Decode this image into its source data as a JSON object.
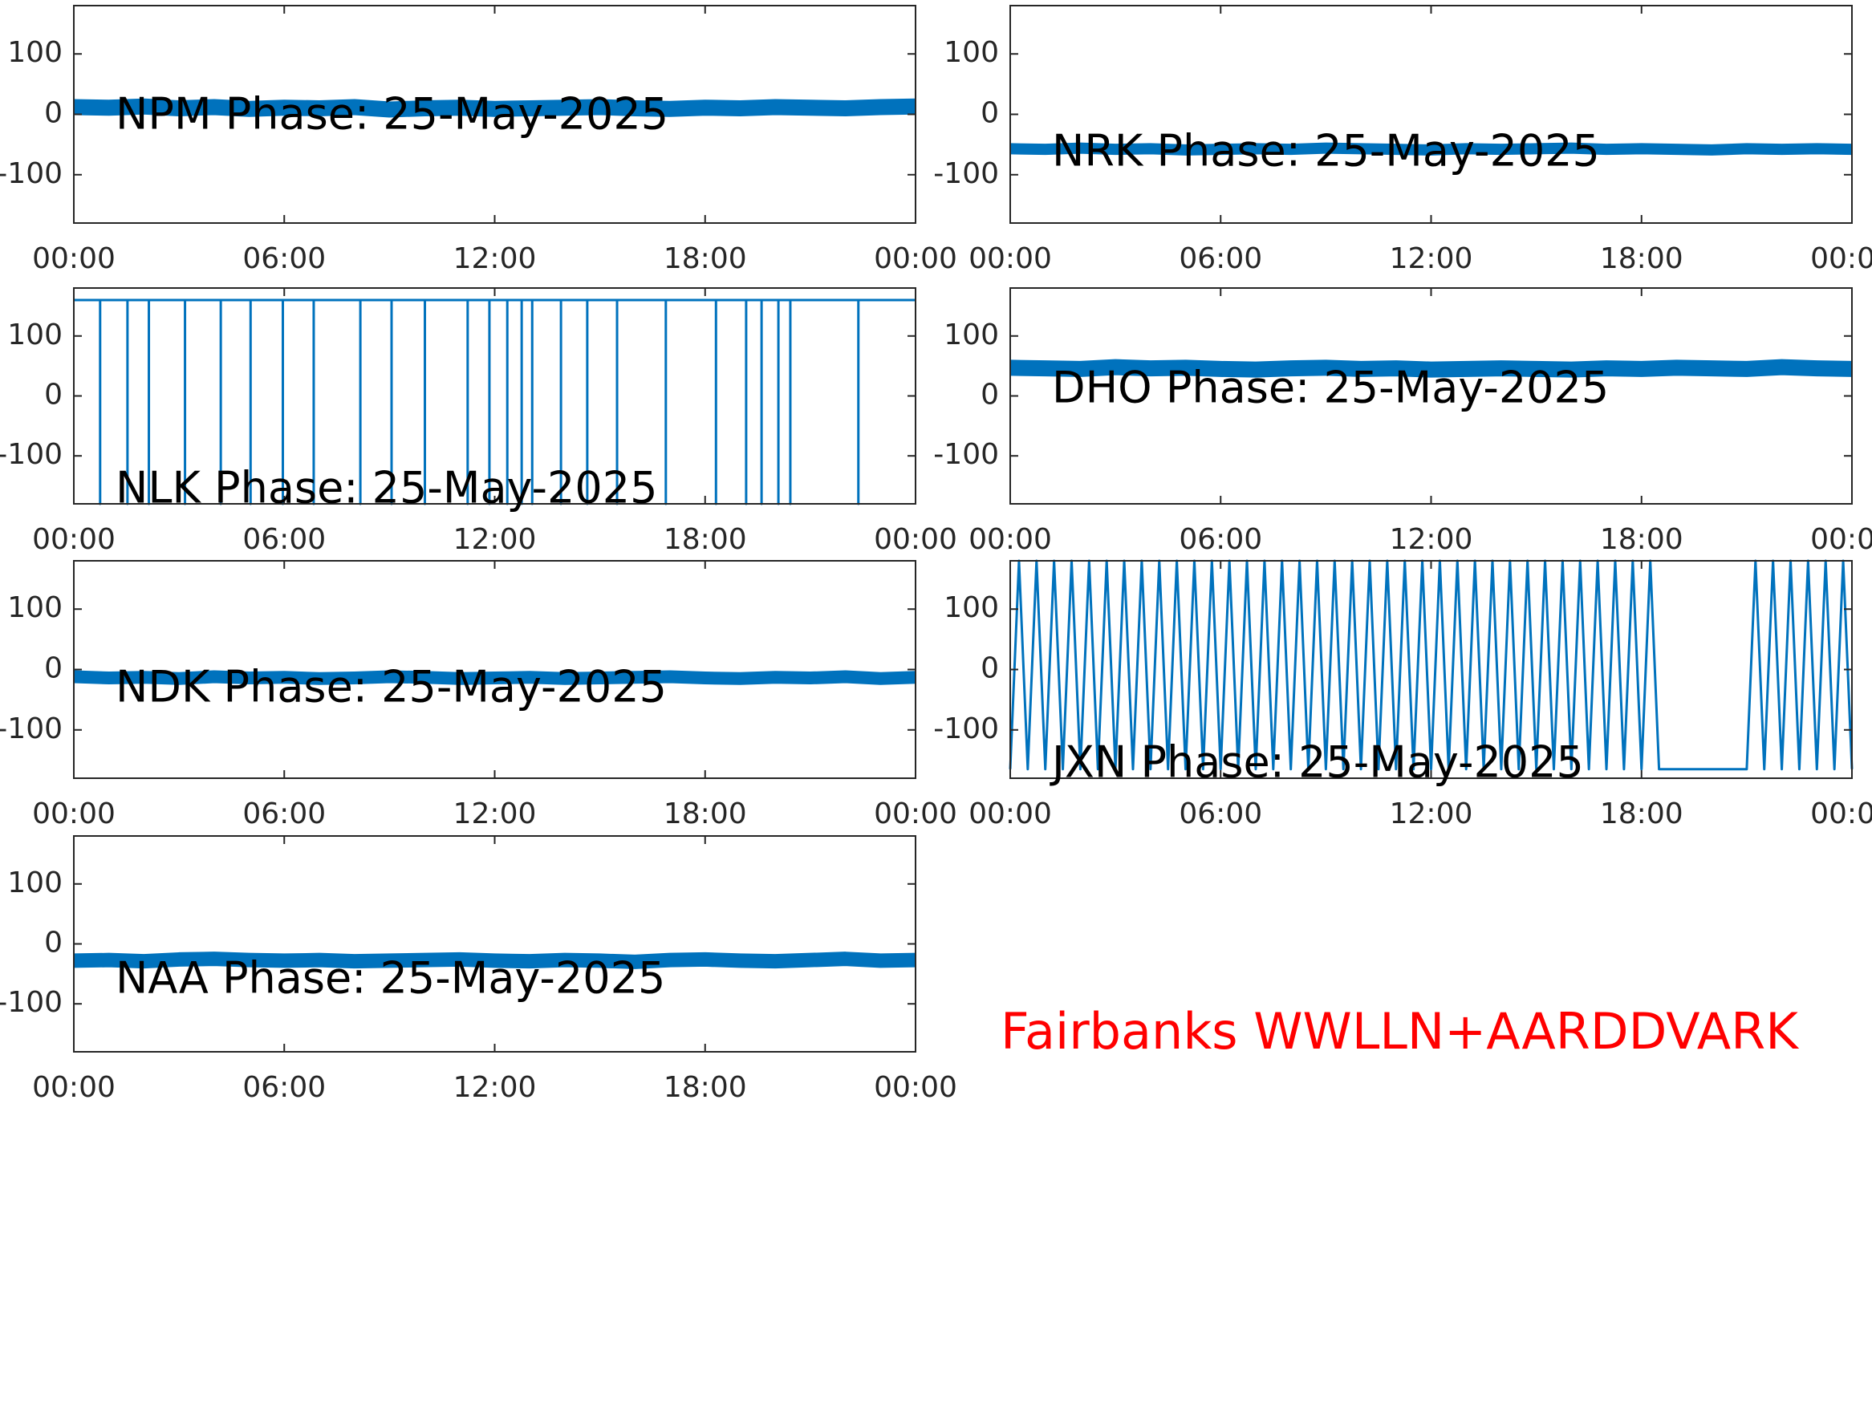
{
  "chart_data": [
    {
      "type": "line",
      "title": "NPM Phase: 25-May-2025",
      "x": [
        0,
        1,
        2,
        3,
        4,
        5,
        6,
        7,
        8,
        9,
        10,
        11,
        12,
        13,
        14,
        15,
        16,
        17,
        18,
        19,
        20,
        21,
        22,
        23,
        24
      ],
      "series": [
        {
          "color": "#0072bd",
          "values": [
            12,
            11,
            13,
            10,
            12,
            9,
            11,
            10,
            12,
            8,
            10,
            11,
            9,
            10,
            11,
            12,
            10,
            9,
            11,
            10,
            12,
            11,
            10,
            12,
            13
          ]
        }
      ],
      "xlim": [
        0,
        24
      ],
      "xticks": [
        {
          "value": 0,
          "label": "00:00"
        },
        {
          "value": 6,
          "label": "06:00"
        },
        {
          "value": 12,
          "label": "12:00"
        },
        {
          "value": 18,
          "label": "18:00"
        },
        {
          "value": 24,
          "label": "00:00"
        }
      ],
      "ylim": [
        -180,
        180
      ],
      "yticks": [
        -100,
        0,
        100
      ]
    },
    {
      "type": "line",
      "title": "NRK Phase: 25-May-2025",
      "x": [
        0,
        1,
        2,
        3,
        4,
        5,
        6,
        7,
        8,
        9,
        10,
        11,
        12,
        13,
        14,
        15,
        16,
        17,
        18,
        19,
        20,
        21,
        22,
        23,
        24
      ],
      "series": [
        {
          "color": "#0072bd",
          "values": [
            -57,
            -58,
            -56,
            -58,
            -57,
            -59,
            -58,
            -57,
            -58,
            -56,
            -57,
            -58,
            -59,
            -57,
            -58,
            -57,
            -56,
            -58,
            -57,
            -58,
            -59,
            -57,
            -58,
            -57,
            -58
          ]
        }
      ],
      "xlim": [
        0,
        24
      ],
      "xticks": [
        {
          "value": 0,
          "label": "00:00"
        },
        {
          "value": 6,
          "label": "06:00"
        },
        {
          "value": 12,
          "label": "12:00"
        },
        {
          "value": 18,
          "label": "18:00"
        },
        {
          "value": 24,
          "label": "00:00"
        }
      ],
      "ylim": [
        -180,
        180
      ],
      "yticks": [
        -100,
        0,
        100
      ]
    },
    {
      "type": "line",
      "title": "NLK Phase: 25-May-2025",
      "x": [
        0,
        0.75,
        0.75,
        0.75,
        1.53,
        1.53,
        1.53,
        2.14,
        2.14,
        2.14,
        3.17,
        3.17,
        3.17,
        4.19,
        4.19,
        4.19,
        5.04,
        5.04,
        5.04,
        5.96,
        5.96,
        5.96,
        6.84,
        6.84,
        6.84,
        8.17,
        8.17,
        8.17,
        9.06,
        9.06,
        9.06,
        10.01,
        10.01,
        10.01,
        11.23,
        11.23,
        11.23,
        11.85,
        11.85,
        11.85,
        12.36,
        12.36,
        12.36,
        12.77,
        12.77,
        12.77,
        13.07,
        13.07,
        13.07,
        13.89,
        13.89,
        13.89,
        14.64,
        14.64,
        14.64,
        15.49,
        15.49,
        15.49,
        16.88,
        16.88,
        16.88,
        18.31,
        18.31,
        18.31,
        19.17,
        19.17,
        19.17,
        19.61,
        19.61,
        19.61,
        20.09,
        20.09,
        20.09,
        20.43,
        20.43,
        20.43,
        22.37,
        22.37,
        22.37,
        24
      ],
      "series": [
        {
          "color": "#0072bd",
          "values": [
            160,
            160,
            -180,
            160,
            160,
            -180,
            160,
            160,
            -180,
            160,
            160,
            -180,
            160,
            160,
            -180,
            160,
            160,
            -180,
            160,
            160,
            -180,
            160,
            160,
            -180,
            160,
            160,
            -180,
            160,
            160,
            -180,
            160,
            160,
            -180,
            160,
            160,
            -180,
            160,
            160,
            -180,
            160,
            160,
            -180,
            160,
            160,
            -180,
            160,
            160,
            -180,
            160,
            160,
            -180,
            160,
            160,
            -180,
            160,
            160,
            -180,
            160,
            160,
            -180,
            160,
            160,
            -180,
            160,
            160,
            -180,
            160,
            160,
            -180,
            160,
            160,
            -180,
            160,
            160,
            -180,
            160,
            160,
            -180,
            160,
            160
          ]
        }
      ],
      "xlim": [
        0,
        24
      ],
      "xticks": [
        {
          "value": 0,
          "label": "00:00"
        },
        {
          "value": 6,
          "label": "06:00"
        },
        {
          "value": 12,
          "label": "12:00"
        },
        {
          "value": 18,
          "label": "18:00"
        },
        {
          "value": 24,
          "label": "00:00"
        }
      ],
      "ylim": [
        -180,
        180
      ],
      "yticks": [
        -100,
        0,
        100
      ]
    },
    {
      "type": "line",
      "title": "DHO Phase: 25-May-2025",
      "x": [
        0,
        1,
        2,
        3,
        4,
        5,
        6,
        7,
        8,
        9,
        10,
        11,
        12,
        13,
        14,
        15,
        16,
        17,
        18,
        19,
        20,
        21,
        22,
        23,
        24
      ],
      "series": [
        {
          "color": "#0072bd",
          "values": [
            47,
            46,
            45,
            48,
            46,
            47,
            45,
            44,
            46,
            47,
            45,
            46,
            44,
            45,
            46,
            45,
            44,
            46,
            45,
            47,
            46,
            45,
            48,
            46,
            45
          ]
        }
      ],
      "xlim": [
        0,
        24
      ],
      "xticks": [
        {
          "value": 0,
          "label": "00:00"
        },
        {
          "value": 6,
          "label": "06:00"
        },
        {
          "value": 12,
          "label": "12:00"
        },
        {
          "value": 18,
          "label": "18:00"
        },
        {
          "value": 24,
          "label": "00:00"
        }
      ],
      "ylim": [
        -180,
        180
      ],
      "yticks": [
        -100,
        0,
        100
      ]
    },
    {
      "type": "line",
      "title": "NDK Phase: 25-May-2025",
      "x": [
        0,
        1,
        2,
        3,
        4,
        5,
        6,
        7,
        8,
        9,
        10,
        11,
        12,
        13,
        14,
        15,
        16,
        17,
        18,
        19,
        20,
        21,
        22,
        23,
        24
      ],
      "series": [
        {
          "color": "#0072bd",
          "values": [
            -12,
            -14,
            -13,
            -15,
            -12,
            -14,
            -13,
            -15,
            -14,
            -12,
            -13,
            -15,
            -14,
            -13,
            -15,
            -14,
            -13,
            -12,
            -14,
            -15,
            -13,
            -14,
            -12,
            -15,
            -13
          ]
        }
      ],
      "xlim": [
        0,
        24
      ],
      "xticks": [
        {
          "value": 0,
          "label": "00:00"
        },
        {
          "value": 6,
          "label": "06:00"
        },
        {
          "value": 12,
          "label": "12:00"
        },
        {
          "value": 18,
          "label": "18:00"
        },
        {
          "value": 24,
          "label": "00:00"
        }
      ],
      "ylim": [
        -180,
        180
      ],
      "yticks": [
        -100,
        0,
        100
      ]
    },
    {
      "type": "line",
      "title": "JXN Phase: 25-May-2025",
      "x": [
        0,
        0.25,
        0.5,
        0.75,
        1,
        1.25,
        1.5,
        1.75,
        2,
        2.25,
        2.5,
        2.75,
        3,
        3.25,
        3.5,
        3.75,
        4,
        4.25,
        4.5,
        4.75,
        5,
        5.25,
        5.5,
        5.75,
        6,
        6.25,
        6.5,
        6.75,
        7,
        7.25,
        7.5,
        7.75,
        8,
        8.25,
        8.5,
        8.75,
        9,
        9.25,
        9.5,
        9.75,
        10,
        10.25,
        10.5,
        10.75,
        11,
        11.25,
        11.5,
        11.75,
        12,
        12.25,
        12.5,
        12.75,
        13,
        13.25,
        13.5,
        13.75,
        14,
        14.25,
        14.5,
        14.75,
        15,
        15.25,
        15.5,
        15.75,
        16,
        16.25,
        16.5,
        16.75,
        17,
        17.25,
        17.5,
        17.75,
        18,
        18.25,
        18.5,
        18.75,
        19,
        19.25,
        19.5,
        19.75,
        20,
        20.25,
        20.5,
        20.75,
        21,
        21.25,
        21.5,
        21.75,
        22,
        22.25,
        22.5,
        22.75,
        23,
        23.25,
        23.5,
        23.75,
        24
      ],
      "series": [
        {
          "color": "#0072bd",
          "values": [
            -165,
            180,
            -165,
            180,
            -165,
            180,
            -165,
            180,
            -165,
            180,
            -165,
            180,
            -165,
            180,
            -165,
            180,
            -165,
            180,
            -165,
            180,
            -165,
            180,
            -165,
            180,
            -165,
            180,
            -165,
            180,
            -165,
            180,
            -165,
            180,
            -165,
            180,
            -165,
            180,
            -165,
            180,
            -165,
            180,
            -165,
            180,
            -165,
            180,
            -165,
            180,
            -165,
            180,
            -165,
            180,
            -165,
            180,
            -165,
            180,
            -165,
            180,
            -165,
            180,
            -165,
            180,
            -165,
            180,
            -165,
            180,
            -165,
            180,
            -165,
            180,
            -165,
            180,
            -165,
            180,
            -165,
            180,
            -165,
            -165,
            -165,
            -165,
            -165,
            -165,
            -165,
            -165,
            -165,
            -165,
            -165,
            180,
            -165,
            180,
            -165,
            180,
            -165,
            180,
            -165,
            180,
            -165,
            180,
            -165
          ]
        }
      ],
      "xlim": [
        0,
        24
      ],
      "xticks": [
        {
          "value": 0,
          "label": "00:00"
        },
        {
          "value": 6,
          "label": "06:00"
        },
        {
          "value": 12,
          "label": "12:00"
        },
        {
          "value": 18,
          "label": "18:00"
        },
        {
          "value": 24,
          "label": "00:00"
        }
      ],
      "ylim": [
        -180,
        180
      ],
      "yticks": [
        -100,
        0,
        100
      ]
    },
    {
      "type": "line",
      "title": "NAA Phase: 25-May-2025",
      "x": [
        0,
        1,
        2,
        3,
        4,
        5,
        6,
        7,
        8,
        9,
        10,
        11,
        12,
        13,
        14,
        15,
        16,
        17,
        18,
        19,
        20,
        21,
        22,
        23,
        24
      ],
      "series": [
        {
          "color": "#0072bd",
          "values": [
            -28,
            -27,
            -29,
            -26,
            -25,
            -27,
            -28,
            -27,
            -29,
            -28,
            -27,
            -26,
            -28,
            -29,
            -27,
            -28,
            -30,
            -27,
            -26,
            -28,
            -29,
            -27,
            -25,
            -28,
            -27
          ]
        }
      ],
      "xlim": [
        0,
        24
      ],
      "xticks": [
        {
          "value": 0,
          "label": "00:00"
        },
        {
          "value": 6,
          "label": "06:00"
        },
        {
          "value": 12,
          "label": "12:00"
        },
        {
          "value": 18,
          "label": "18:00"
        },
        {
          "value": 24,
          "label": "00:00"
        }
      ],
      "ylim": [
        -180,
        180
      ],
      "yticks": [
        -100,
        0,
        100
      ]
    }
  ],
  "station_label": "Fairbanks WWLLN+AARDDVARK"
}
